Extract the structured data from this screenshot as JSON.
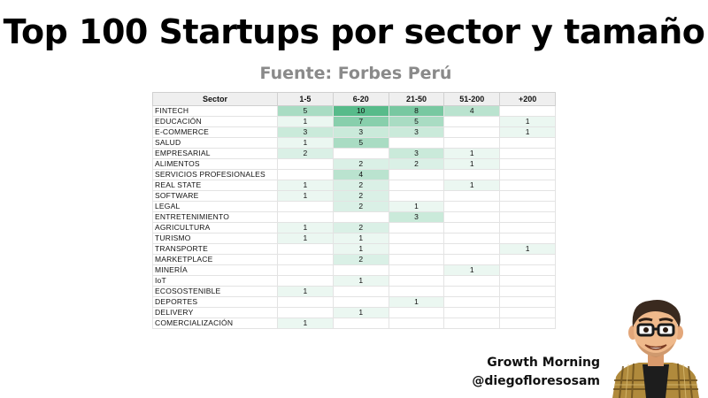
{
  "title": "Top 100 Startups por sector y tamaño",
  "subtitle": "Fuente: Forbes Perú",
  "chart_data": {
    "type": "heatmap",
    "row_header": "Sector",
    "columns": [
      "1-5",
      "6-20",
      "21-50",
      "51-200",
      "+200"
    ],
    "rows": [
      {
        "sector": "FINTECH",
        "values": [
          5,
          10,
          8,
          4,
          null
        ]
      },
      {
        "sector": "EDUCACIÓN",
        "values": [
          1,
          7,
          5,
          null,
          1
        ]
      },
      {
        "sector": "E-COMMERCE",
        "values": [
          3,
          3,
          3,
          null,
          1
        ]
      },
      {
        "sector": "SALUD",
        "values": [
          1,
          5,
          null,
          null,
          null
        ]
      },
      {
        "sector": "EMPRESARIAL",
        "values": [
          2,
          null,
          3,
          1,
          null
        ]
      },
      {
        "sector": "ALIMENTOS",
        "values": [
          null,
          2,
          2,
          1,
          null
        ]
      },
      {
        "sector": "SERVICIOS PROFESIONALES",
        "values": [
          null,
          4,
          null,
          null,
          null
        ]
      },
      {
        "sector": "REAL STATE",
        "values": [
          1,
          2,
          null,
          1,
          null
        ]
      },
      {
        "sector": "SOFTWARE",
        "values": [
          1,
          2,
          null,
          null,
          null
        ]
      },
      {
        "sector": "LEGAL",
        "values": [
          null,
          2,
          1,
          null,
          null
        ]
      },
      {
        "sector": "ENTRETENIMIENTO",
        "values": [
          null,
          null,
          3,
          null,
          null
        ]
      },
      {
        "sector": "AGRICULTURA",
        "values": [
          1,
          2,
          null,
          null,
          null
        ]
      },
      {
        "sector": "TURISMO",
        "values": [
          1,
          1,
          null,
          null,
          null
        ]
      },
      {
        "sector": "TRANSPORTE",
        "values": [
          null,
          1,
          null,
          null,
          1
        ]
      },
      {
        "sector": "MARKETPLACE",
        "values": [
          null,
          2,
          null,
          null,
          null
        ]
      },
      {
        "sector": "MINERÍA",
        "values": [
          null,
          null,
          null,
          1,
          null
        ]
      },
      {
        "sector": "IoT",
        "values": [
          null,
          1,
          null,
          null,
          null
        ]
      },
      {
        "sector": "ECOSOSTENIBLE",
        "values": [
          1,
          null,
          null,
          null,
          null
        ]
      },
      {
        "sector": "DEPORTES",
        "values": [
          null,
          null,
          1,
          null,
          null
        ]
      },
      {
        "sector": "DELIVERY",
        "values": [
          null,
          1,
          null,
          null,
          null
        ]
      },
      {
        "sector": "COMERCIALIZACIÓN",
        "values": [
          1,
          null,
          null,
          null,
          null
        ]
      }
    ],
    "color_min": "#ffffff",
    "color_max": "#57bb8a",
    "value_range": [
      1,
      10
    ]
  },
  "brand": {
    "name": "Growth Morning",
    "handle": "@diegofloresosam"
  }
}
